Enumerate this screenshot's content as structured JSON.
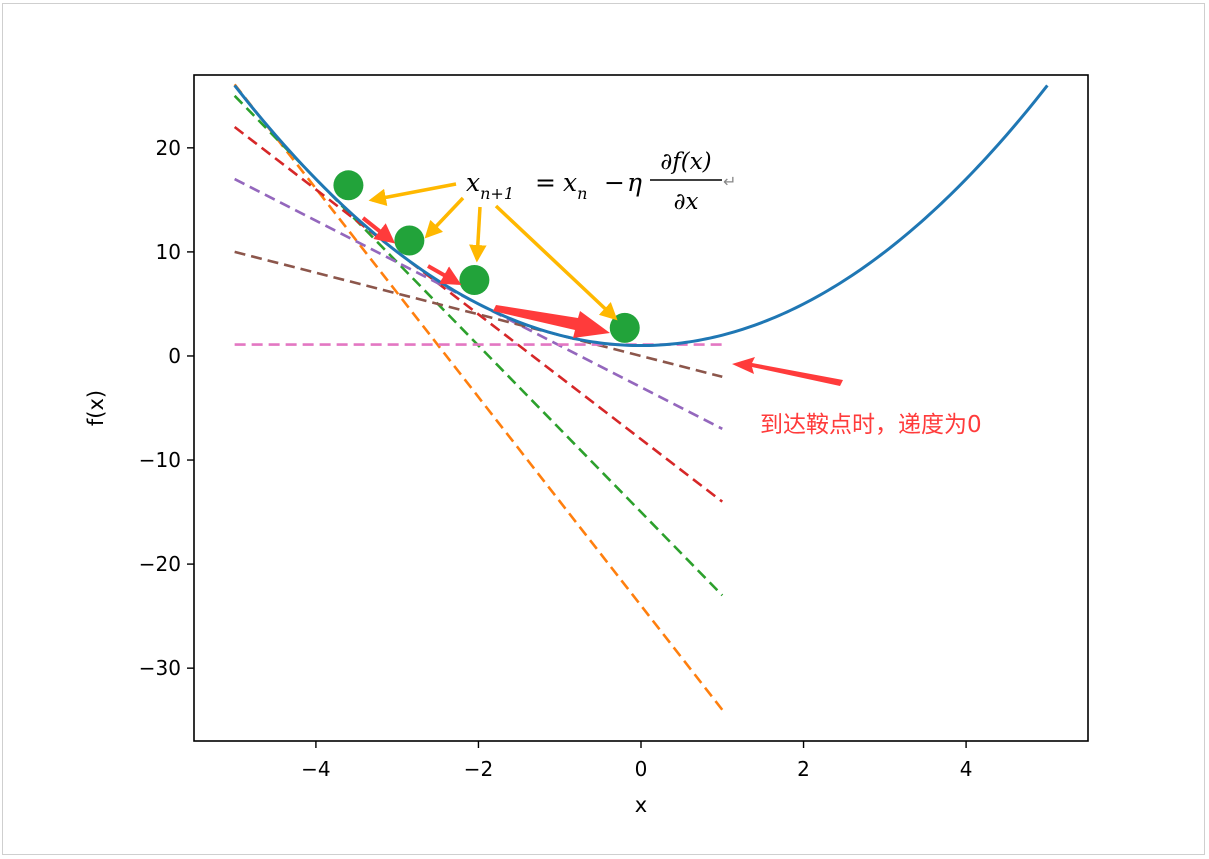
{
  "chart_data": {
    "type": "line",
    "xlabel": "x",
    "ylabel": "f(x)",
    "xlim": [
      -5.5,
      5.5
    ],
    "ylim": [
      -37,
      27
    ],
    "x_ticks": [
      -4,
      -2,
      0,
      2,
      4
    ],
    "y_ticks": [
      -30,
      -20,
      -10,
      0,
      10,
      20
    ],
    "tick_labels": {
      "x": [
        "−4",
        "−2",
        "0",
        "2",
        "4"
      ],
      "y": [
        "−30",
        "−20",
        "−10",
        "0",
        "10",
        "20"
      ]
    },
    "grid": false,
    "curve": {
      "function": "f(x) = x^2 + 1",
      "x_range": [
        -5,
        5
      ],
      "color": "#1f77b4"
    },
    "tangent_lines": [
      {
        "x0": -5.0,
        "x1": 1.0,
        "y0": 26.1,
        "y1": -34.0,
        "color": "#ff7f0e"
      },
      {
        "x0": -5.0,
        "x1": 1.0,
        "y0": 25.0,
        "y1": -23.0,
        "color": "#2ca02c"
      },
      {
        "x0": -5.0,
        "x1": 1.0,
        "y0": 22.0,
        "y1": -14.0,
        "color": "#d62728"
      },
      {
        "x0": -5.0,
        "x1": 1.0,
        "y0": 17.0,
        "y1": -7.0,
        "color": "#9467bd"
      },
      {
        "x0": -5.0,
        "x1": 1.0,
        "y0": 10.0,
        "y1": -2.0,
        "color": "#8c564b"
      },
      {
        "x0": -5.0,
        "x1": 1.0,
        "y0": 1.1,
        "y1": 1.1,
        "color": "#e377c2"
      }
    ],
    "points": [
      {
        "x": -3.6,
        "y": 16.4
      },
      {
        "x": -2.85,
        "y": 11.1
      },
      {
        "x": -2.05,
        "y": 7.3
      },
      {
        "x": -0.2,
        "y": 2.7
      }
    ],
    "point_color": "#22a33a",
    "formula": {
      "lhs": "x",
      "lhs_sub": "n+1",
      "eq": "=",
      "term": "x",
      "term_sub": "n",
      "minus": "−",
      "eta": "η",
      "numerator": "∂f(x)",
      "denominator": "∂x",
      "return_mark": "↵"
    },
    "annotation": "到达鞍点时，递度为0",
    "arrow_colors": {
      "formula": "#ffb800",
      "step": "#ff3b3b"
    }
  }
}
